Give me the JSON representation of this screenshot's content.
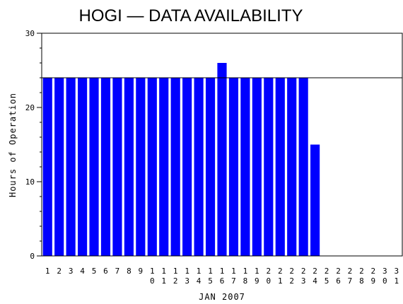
{
  "chart_data": {
    "type": "bar",
    "title": "HOGI — DATA AVAILABILITY",
    "xlabel": "JAN 2007",
    "ylabel": "Hours of Operation",
    "categories": [
      "1",
      "2",
      "3",
      "4",
      "5",
      "6",
      "7",
      "8",
      "9",
      "10",
      "11",
      "12",
      "13",
      "14",
      "15",
      "16",
      "17",
      "18",
      "19",
      "20",
      "21",
      "22",
      "23",
      "24",
      "25",
      "26",
      "27",
      "28",
      "29",
      "30",
      "31"
    ],
    "values": [
      24,
      24,
      24,
      24,
      24,
      24,
      24,
      24,
      24,
      24,
      24,
      24,
      24,
      24,
      24,
      26,
      24,
      24,
      24,
      24,
      24,
      24,
      24,
      15,
      0,
      0,
      0,
      0,
      0,
      0,
      0
    ],
    "ylim": [
      0,
      30
    ],
    "yticks": [
      0,
      10,
      20,
      30
    ],
    "reference_line": 24,
    "bar_color": "#0000ff",
    "grid": false
  }
}
